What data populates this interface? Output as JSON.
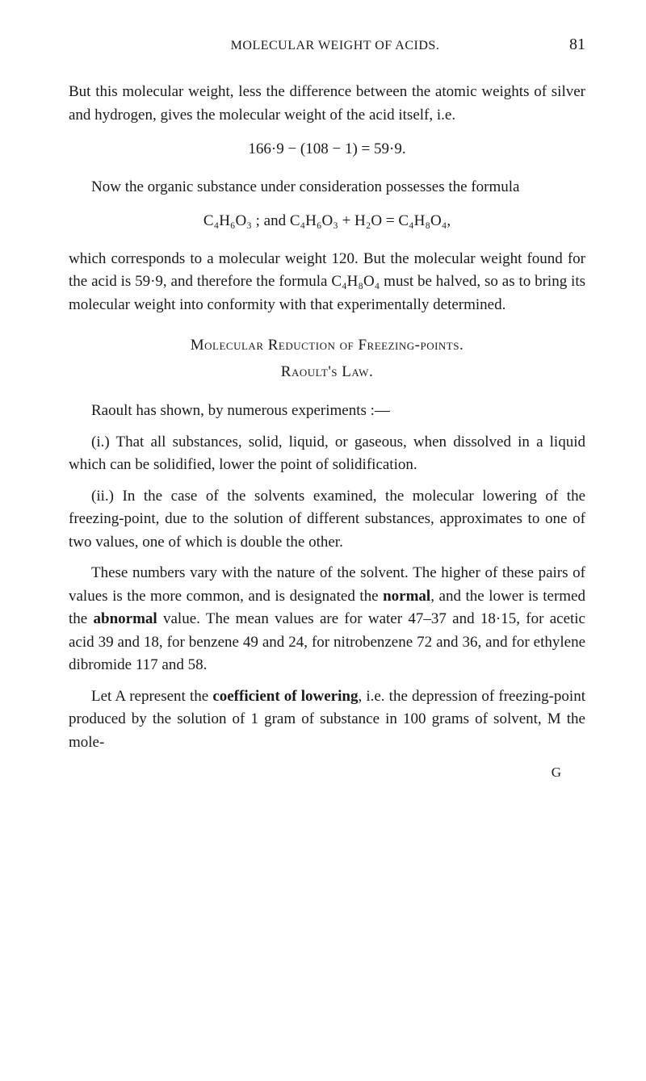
{
  "header": {
    "running_head": "MOLECULAR WEIGHT OF ACIDS.",
    "page_number": "81"
  },
  "body": {
    "p1": "But this molecular weight, less the difference between the atomic weights of silver and hydrogen, gives the molecular weight of the acid itself, i.e.",
    "formula1": "166·9 − (108 − 1) = 59·9.",
    "p2": "Now the organic substance under consideration possesses the formula",
    "formula2": "C₄H₆O₃ ; and C₄H₆O₃ + H₂O = C₄H₈O₄,",
    "p3": "which corresponds to a molecular weight 120. But the molecular weight found for the acid is 59·9, and therefore the formula C₄H₈O₄ must be halved, so as to bring its molecular weight into conformity with that experimentally determined.",
    "heading1": "Molecular Reduction of Freezing-points.",
    "heading2": "Raoult's Law.",
    "p4": "Raoult has shown, by numerous experiments :—",
    "p5": "(i.) That all substances, solid, liquid, or gaseous, when dissolved in a liquid which can be solidified, lower the point of solidification.",
    "p6": "(ii.) In the case of the solvents examined, the molecular lowering of the freezing-point, due to the solution of different substances, approximates to one of two values, one of which is double the other.",
    "p7_part1": "These numbers vary with the nature of the solvent. The higher of these pairs of values is the more common, and is designated the ",
    "p7_bold1": "normal",
    "p7_part2": ", and the lower is termed the ",
    "p7_bold2": "abnormal",
    "p7_part3": " value. The mean values are for water 47–37 and 18·15, for acetic acid 39 and 18, for benzene 49 and 24, for nitrobenzene 72 and 36, and for ethylene dibromide 117 and 58.",
    "p8_part1": "Let A represent the ",
    "p8_bold1": "coefficient of lowering",
    "p8_part2": ", i.e. the depression of freezing-point produced by the solution of 1 gram of substance in 100 grams of solvent, M the mole-",
    "sig": "G"
  }
}
